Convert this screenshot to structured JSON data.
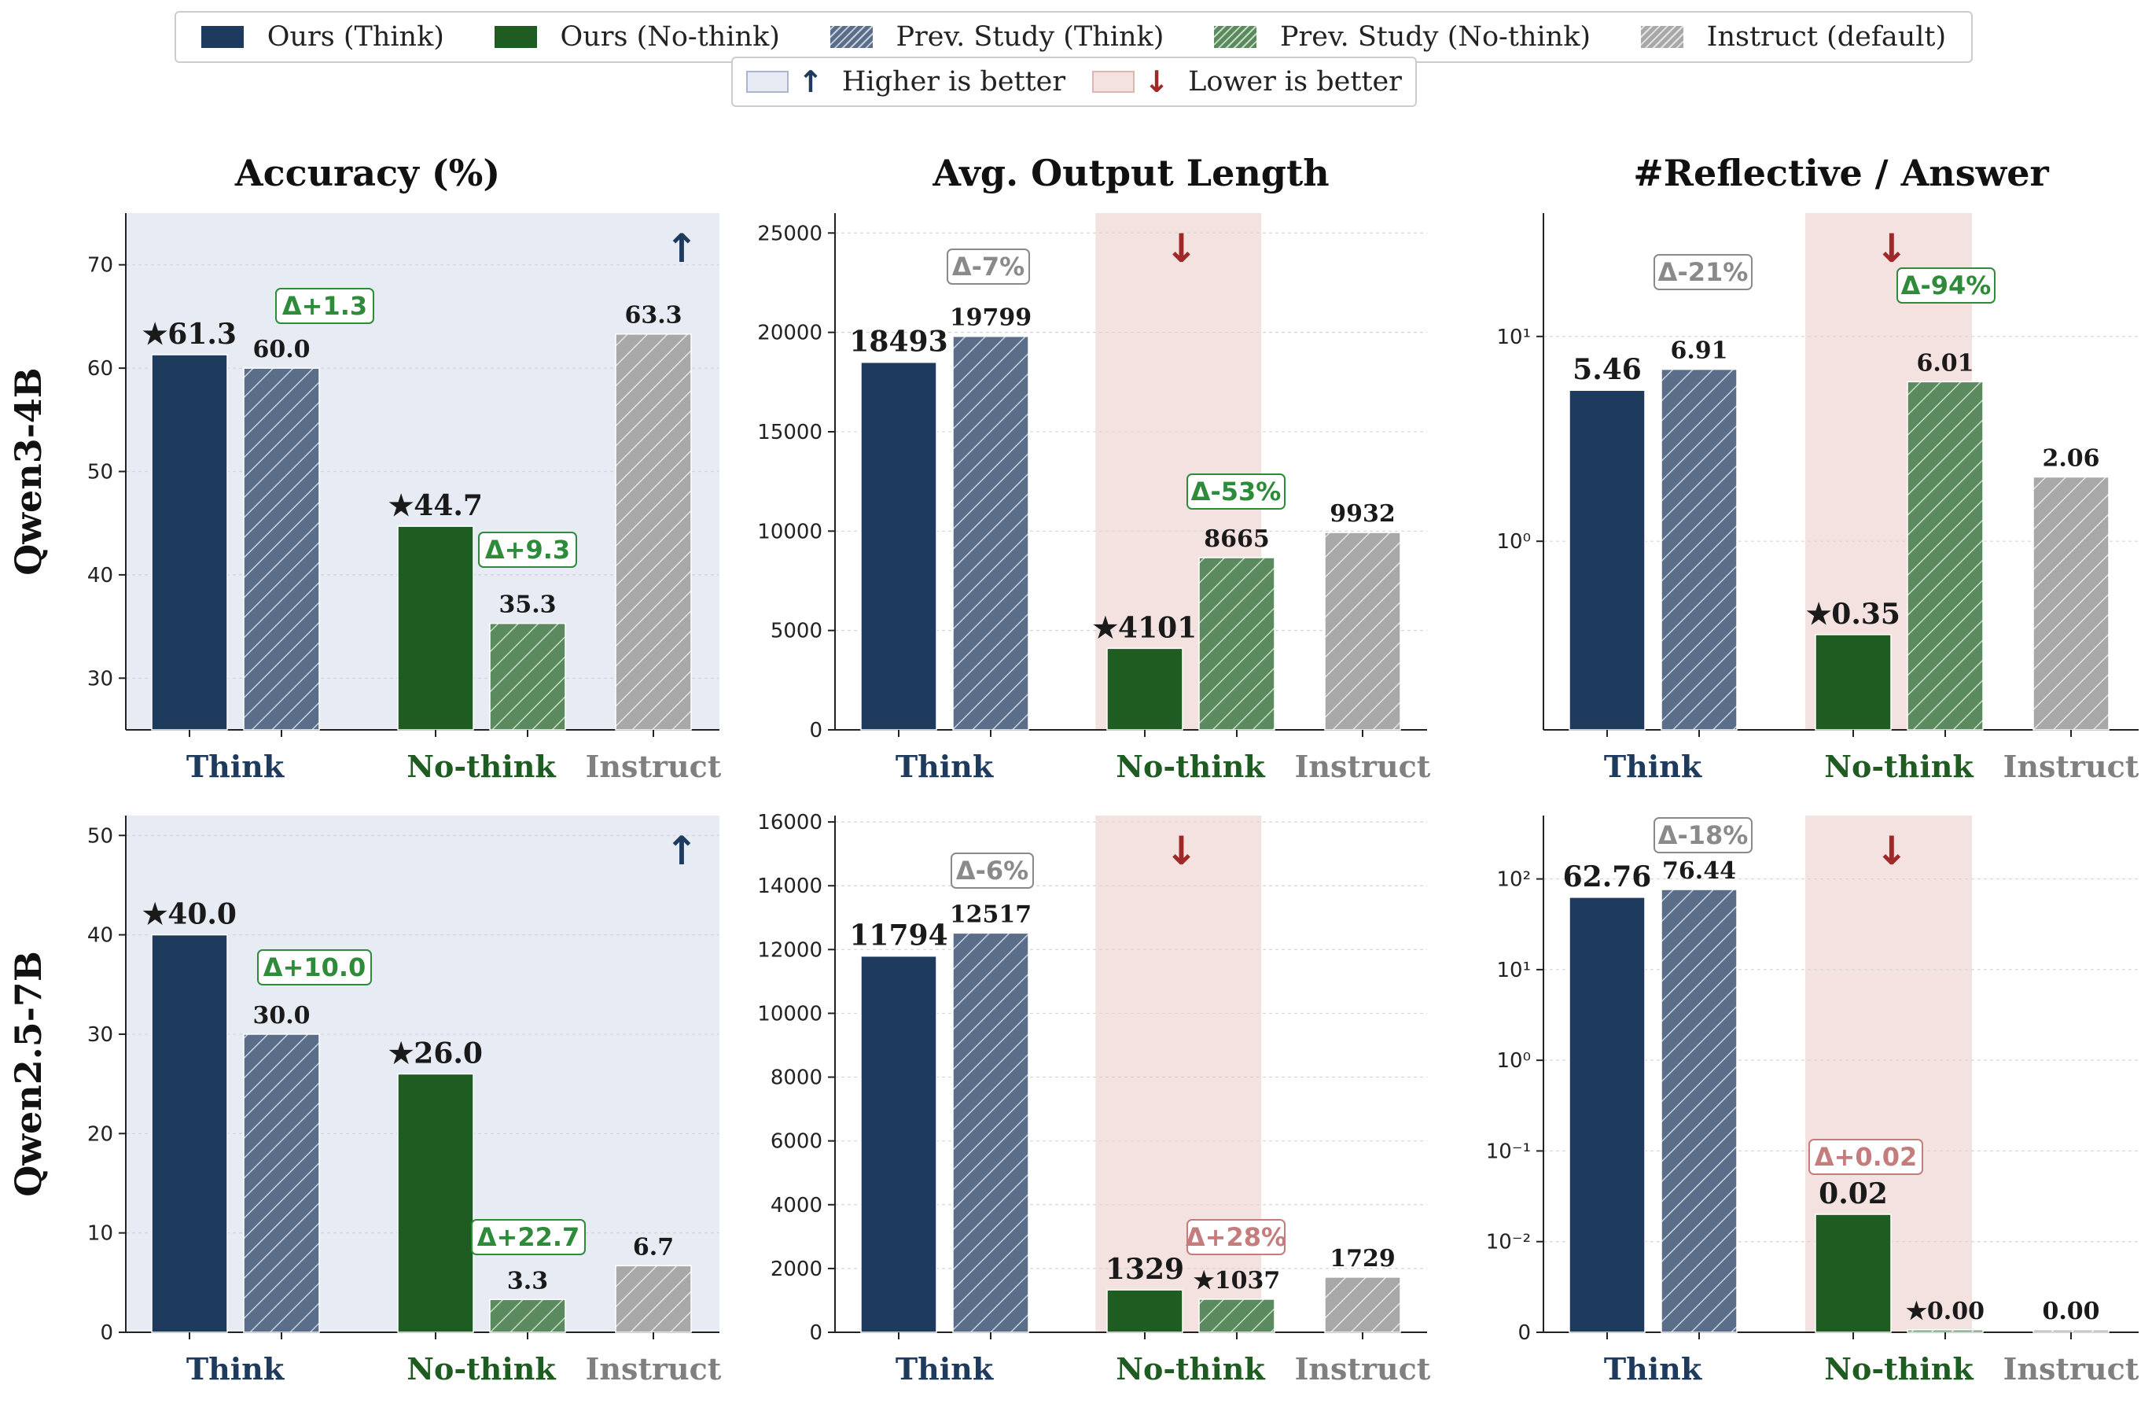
{
  "legend": {
    "items": [
      {
        "label": "Ours (Think)",
        "color": "#1e3a5c",
        "hatch": false
      },
      {
        "label": "Ours (No-think)",
        "color": "#1e5c22",
        "hatch": false
      },
      {
        "label": "Prev. Study (Think)",
        "color": "#5a6e8a",
        "hatch": true
      },
      {
        "label": "Prev. Study (No-think)",
        "color": "#5a8a5e",
        "hatch": true
      },
      {
        "label": "Instruct (default)",
        "color": "#a8a8a8",
        "hatch": true
      }
    ],
    "direction_items": [
      {
        "label": "Higher is better",
        "arrow": "↑",
        "arrow_color": "#1e3a5c",
        "swatch": "#e6ebf4"
      },
      {
        "label": "Lower is better",
        "arrow": "↓",
        "arrow_color": "#a02828",
        "swatch": "#f3e2e0"
      }
    ]
  },
  "column_titles": [
    "Accuracy (%)",
    "Avg. Output Length",
    "#Reflective / Answer"
  ],
  "row_titles": [
    "Qwen3-4B",
    "Qwen2.5-7B"
  ],
  "group_labels": [
    "Think",
    "No-think",
    "Instruct"
  ],
  "colors": {
    "think": "#1e3a5c",
    "nothink": "#1e5c22",
    "prev_think": "#5a6e8a",
    "prev_nothink": "#5a8a5e",
    "instruct": "#a8a8a8",
    "higher_bg": "#e6ebf4",
    "lower_bg": "#f3e2e0",
    "delta_green": "#2e8b3a",
    "delta_gray": "#8a8a8a",
    "delta_red": "#c47c7c",
    "arrow_up": "#1e3a5c",
    "arrow_down": "#a02828"
  },
  "chart_data": [
    {
      "type": "bar",
      "model": "Qwen3-4B",
      "metric": "Accuracy (%)",
      "scale": "linear",
      "ylim": [
        25,
        75
      ],
      "yticks": [
        30,
        40,
        50,
        60,
        70
      ],
      "better": "higher",
      "bars": [
        {
          "series": "Ours (Think)",
          "value": 61.3,
          "label": "★61.3"
        },
        {
          "series": "Prev. Study (Think)",
          "value": 60.0,
          "label": "60.0"
        },
        {
          "series": "Ours (No-think)",
          "value": 44.7,
          "label": "★44.7"
        },
        {
          "series": "Prev. Study (No-think)",
          "value": 35.3,
          "label": "35.3"
        },
        {
          "series": "Instruct (default)",
          "value": 63.3,
          "label": "63.3"
        }
      ],
      "deltas": [
        {
          "group": "Think",
          "text": "Δ+1.3",
          "tone": "green"
        },
        {
          "group": "No-think",
          "text": "Δ+9.3",
          "tone": "green"
        }
      ]
    },
    {
      "type": "bar",
      "model": "Qwen3-4B",
      "metric": "Avg. Output Length",
      "scale": "linear",
      "ylim": [
        0,
        26000
      ],
      "yticks": [
        0,
        5000,
        10000,
        15000,
        20000,
        25000
      ],
      "better": "lower",
      "bars": [
        {
          "series": "Ours (Think)",
          "value": 18493,
          "label": "18493"
        },
        {
          "series": "Prev. Study (Think)",
          "value": 19799,
          "label": "19799"
        },
        {
          "series": "Ours (No-think)",
          "value": 4101,
          "label": "★4101"
        },
        {
          "series": "Prev. Study (No-think)",
          "value": 8665,
          "label": "8665"
        },
        {
          "series": "Instruct (default)",
          "value": 9932,
          "label": "9932"
        }
      ],
      "deltas": [
        {
          "group": "Think",
          "text": "Δ-7%",
          "tone": "gray"
        },
        {
          "group": "No-think",
          "text": "Δ-53%",
          "tone": "green"
        }
      ]
    },
    {
      "type": "bar",
      "model": "Qwen3-4B",
      "metric": "#Reflective / Answer",
      "scale": "log",
      "ylim": [
        0.12,
        40
      ],
      "yticks": [
        1,
        10
      ],
      "ytick_labels": [
        "10⁰",
        "10¹"
      ],
      "better": "lower",
      "bars": [
        {
          "series": "Ours (Think)",
          "value": 5.46,
          "label": "5.46"
        },
        {
          "series": "Prev. Study (Think)",
          "value": 6.91,
          "label": "6.91"
        },
        {
          "series": "Ours (No-think)",
          "value": 0.35,
          "label": "★0.35"
        },
        {
          "series": "Prev. Study (No-think)",
          "value": 6.01,
          "label": "6.01"
        },
        {
          "series": "Instruct (default)",
          "value": 2.06,
          "label": "2.06"
        }
      ],
      "deltas": [
        {
          "group": "Think",
          "text": "Δ-21%",
          "tone": "gray"
        },
        {
          "group": "No-think",
          "text": "Δ-94%",
          "tone": "green"
        }
      ]
    },
    {
      "type": "bar",
      "model": "Qwen2.5-7B",
      "metric": "Accuracy (%)",
      "scale": "linear",
      "ylim": [
        0,
        52
      ],
      "yticks": [
        0,
        10,
        20,
        30,
        40,
        50
      ],
      "better": "higher",
      "bars": [
        {
          "series": "Ours (Think)",
          "value": 40.0,
          "label": "★40.0"
        },
        {
          "series": "Prev. Study (Think)",
          "value": 30.0,
          "label": "30.0"
        },
        {
          "series": "Ours (No-think)",
          "value": 26.0,
          "label": "★26.0"
        },
        {
          "series": "Prev. Study (No-think)",
          "value": 3.3,
          "label": "3.3"
        },
        {
          "series": "Instruct (default)",
          "value": 6.7,
          "label": "6.7"
        }
      ],
      "deltas": [
        {
          "group": "Think",
          "text": "Δ+10.0",
          "tone": "green"
        },
        {
          "group": "No-think",
          "text": "Δ+22.7",
          "tone": "green"
        }
      ]
    },
    {
      "type": "bar",
      "model": "Qwen2.5-7B",
      "metric": "Avg. Output Length",
      "scale": "linear",
      "ylim": [
        0,
        16200
      ],
      "yticks": [
        0,
        2000,
        4000,
        6000,
        8000,
        10000,
        12000,
        14000,
        16000
      ],
      "better": "lower",
      "bars": [
        {
          "series": "Ours (Think)",
          "value": 11794,
          "label": "11794"
        },
        {
          "series": "Prev. Study (Think)",
          "value": 12517,
          "label": "12517"
        },
        {
          "series": "Ours (No-think)",
          "value": 1329,
          "label": "1329"
        },
        {
          "series": "Prev. Study (No-think)",
          "value": 1037,
          "label": "★1037"
        },
        {
          "series": "Instruct (default)",
          "value": 1729,
          "label": "1729"
        }
      ],
      "deltas": [
        {
          "group": "Think",
          "text": "Δ-6%",
          "tone": "gray"
        },
        {
          "group": "No-think",
          "text": "Δ+28%",
          "tone": "red"
        }
      ]
    },
    {
      "type": "bar",
      "model": "Qwen2.5-7B",
      "metric": "#Reflective / Answer",
      "scale": "symlog",
      "ylim": [
        0,
        500
      ],
      "yticks": [
        0,
        0.01,
        0.1,
        1,
        10,
        100
      ],
      "ytick_labels": [
        "0",
        "10⁻²",
        "10⁻¹",
        "10⁰",
        "10¹",
        "10²"
      ],
      "better": "lower",
      "bars": [
        {
          "series": "Ours (Think)",
          "value": 62.76,
          "label": "62.76"
        },
        {
          "series": "Prev. Study (Think)",
          "value": 76.44,
          "label": "76.44"
        },
        {
          "series": "Ours (No-think)",
          "value": 0.02,
          "label": "0.02"
        },
        {
          "series": "Prev. Study (No-think)",
          "value": 0.0,
          "label": "★0.00"
        },
        {
          "series": "Instruct (default)",
          "value": 0.0,
          "label": "0.00"
        }
      ],
      "deltas": [
        {
          "group": "Think",
          "text": "Δ-18%",
          "tone": "gray"
        },
        {
          "group": "No-think",
          "text": "Δ+0.02",
          "tone": "red"
        }
      ]
    }
  ]
}
